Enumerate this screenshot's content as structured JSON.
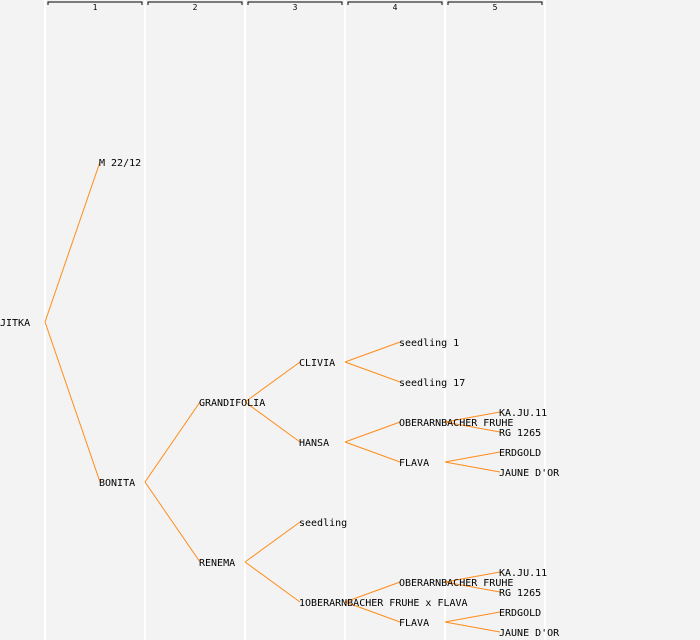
{
  "generations": [
    "1",
    "2",
    "3",
    "4",
    "5"
  ],
  "colors": {
    "edge": "#ff8c1a",
    "background": "#f3f3f3",
    "separator": "#ffffff"
  },
  "pedigree": {
    "name": "JITKA",
    "parents": [
      {
        "name": "M 22/12"
      },
      {
        "name": "BONITA",
        "parents": [
          {
            "name": "GRANDIFOLIA",
            "parents": [
              {
                "name": "CLIVIA",
                "parents": [
                  {
                    "name": "seedling 1"
                  },
                  {
                    "name": "seedling 17"
                  }
                ]
              },
              {
                "name": "HANSA",
                "parents": [
                  {
                    "name": "OBERARNBACHER FRUHE",
                    "parents": [
                      {
                        "name": "KA.JU.11"
                      },
                      {
                        "name": "RG 1265"
                      }
                    ]
                  },
                  {
                    "name": "FLAVA",
                    "parents": [
                      {
                        "name": "ERDGOLD"
                      },
                      {
                        "name": "JAUNE D'OR"
                      }
                    ]
                  }
                ]
              }
            ]
          },
          {
            "name": "RENEMA",
            "parents": [
              {
                "name": "seedling"
              },
              {
                "name": "1OBERARNBACHER FRUHE x FLAVA",
                "parents": [
                  {
                    "name": "OBERARNBACHER FRUHE",
                    "parents": [
                      {
                        "name": "KA.JU.11"
                      },
                      {
                        "name": "RG 1265"
                      }
                    ]
                  },
                  {
                    "name": "FLAVA",
                    "parents": [
                      {
                        "name": "ERDGOLD"
                      },
                      {
                        "name": "JAUNE D'OR"
                      }
                    ]
                  }
                ]
              }
            ]
          }
        ]
      }
    ]
  }
}
